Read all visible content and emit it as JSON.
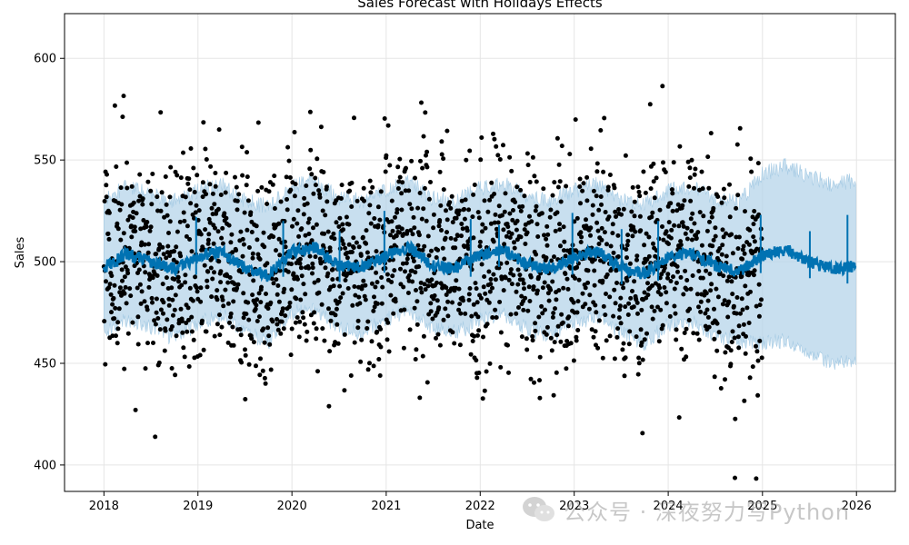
{
  "chart_data": {
    "type": "line",
    "title": "Sales Forecast with Holidays Effects",
    "xlabel": "Date",
    "ylabel": "Sales",
    "xlim": [
      "2017-08-01",
      "2026-06-01"
    ],
    "ylim": [
      387,
      622
    ],
    "x_ticks": [
      "2018",
      "2019",
      "2020",
      "2021",
      "2022",
      "2023",
      "2024",
      "2025",
      "2026"
    ],
    "y_ticks": [
      400,
      450,
      500,
      550,
      600
    ],
    "grid": true,
    "legend": "none",
    "history_range": [
      "2018-01-01",
      "2024-12-31"
    ],
    "forecast_range": [
      "2025-01-01",
      "2025-12-31"
    ],
    "colors": {
      "forecast_line": "#0072b2",
      "uncertainty_band": "#b5d4e9",
      "observed_points": "#000000",
      "grid": "#e5e5e5"
    },
    "series": [
      {
        "kind": "forecast",
        "x": [
          "2018-01-01",
          "2018-04-01",
          "2018-07-01",
          "2018-10-01",
          "2019-01-01",
          "2019-04-01",
          "2019-07-01",
          "2019-10-01",
          "2020-01-01",
          "2020-04-01",
          "2020-07-01",
          "2020-10-01",
          "2021-01-01",
          "2021-04-01",
          "2021-07-01",
          "2021-10-01",
          "2022-01-01",
          "2022-04-01",
          "2022-07-01",
          "2022-10-01",
          "2023-01-01",
          "2023-04-01",
          "2023-07-01",
          "2023-10-01",
          "2024-01-01",
          "2024-04-01",
          "2024-07-01",
          "2024-10-01",
          "2025-01-01",
          "2025-04-01",
          "2025-07-01",
          "2025-10-01",
          "2025-12-31"
        ],
        "values": [
          497,
          504,
          500,
          496,
          502,
          505,
          497,
          493,
          505,
          507,
          498,
          497,
          503,
          507,
          498,
          497,
          503,
          506,
          499,
          496,
          502,
          505,
          497,
          494,
          502,
          504,
          498,
          495,
          503,
          506,
          500,
          496,
          498
        ],
        "lower": [
          465,
          472,
          468,
          462,
          470,
          474,
          466,
          460,
          475,
          477,
          467,
          465,
          472,
          476,
          467,
          465,
          471,
          474,
          467,
          463,
          470,
          473,
          465,
          460,
          469,
          471,
          464,
          460,
          460,
          461,
          455,
          450,
          452
        ],
        "upper": [
          530,
          537,
          533,
          530,
          535,
          538,
          530,
          527,
          537,
          540,
          531,
          530,
          535,
          539,
          531,
          530,
          536,
          539,
          532,
          530,
          535,
          538,
          530,
          528,
          535,
          537,
          531,
          529,
          543,
          547,
          542,
          538,
          540
        ]
      },
      {
        "kind": "holiday_spikes",
        "x": [
          "2018-12-25",
          "2019-11-28",
          "2020-07-04",
          "2020-12-25",
          "2021-11-25",
          "2022-03-15",
          "2022-12-25",
          "2023-07-04",
          "2023-11-23",
          "2024-12-25",
          "2025-07-04",
          "2025-11-27"
        ],
        "values": [
          522,
          520,
          515,
          525,
          521,
          518,
          524,
          516,
          520,
          523,
          515,
          523
        ]
      }
    ]
  },
  "watermark": {
    "icon": "wechat-icon",
    "text": "公众号 · 深夜努力写Python"
  }
}
